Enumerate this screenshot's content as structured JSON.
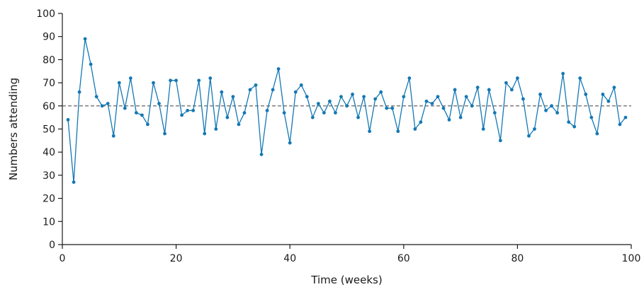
{
  "chart_data": {
    "type": "line",
    "xlabel": "Time (weeks)",
    "ylabel": "Numbers attending",
    "xlim": [
      0,
      100
    ],
    "ylim": [
      0,
      100
    ],
    "xticks": [
      0,
      20,
      40,
      60,
      80,
      100
    ],
    "yticks": [
      0,
      10,
      20,
      30,
      40,
      50,
      60,
      70,
      80,
      90,
      100
    ],
    "grid": false,
    "reference_line": {
      "y": 60,
      "style": "dashed",
      "color": "#555555"
    },
    "series_color": "#1478b4",
    "series": [
      {
        "x": [
          1,
          2,
          3,
          4,
          5,
          6,
          7,
          8,
          9,
          10,
          11,
          12,
          13,
          14,
          15,
          16,
          17,
          18,
          19,
          20,
          21,
          22,
          23,
          24,
          25,
          26,
          27,
          28,
          29,
          30,
          31,
          32,
          33,
          34,
          35,
          36,
          37,
          38,
          39,
          40,
          41,
          42,
          43,
          44,
          45,
          46,
          47,
          48,
          49,
          50,
          51,
          52,
          53,
          54,
          55,
          56,
          57,
          58,
          59,
          60,
          61,
          62,
          63,
          64,
          65,
          66,
          67,
          68,
          69,
          70,
          71,
          72,
          73,
          74,
          75,
          76,
          77,
          78,
          79,
          80,
          81,
          82,
          83,
          84,
          85,
          86,
          87,
          88,
          89,
          90,
          91,
          92,
          93,
          94,
          95,
          96,
          97,
          98,
          99
        ],
        "y": [
          54,
          27,
          66,
          89,
          78,
          64,
          60,
          61,
          47,
          70,
          59,
          72,
          57,
          56,
          52,
          70,
          61,
          48,
          71,
          71,
          56,
          58,
          58,
          71,
          48,
          72,
          50,
          66,
          55,
          64,
          52,
          57,
          67,
          69,
          39,
          58,
          67,
          76,
          57,
          44,
          66,
          69,
          64,
          55,
          61,
          57,
          62,
          57,
          64,
          60,
          65,
          55,
          64,
          49,
          63,
          66,
          59,
          59,
          49,
          64,
          72,
          50,
          53,
          62,
          61,
          64,
          59,
          54,
          67,
          55,
          64,
          60,
          68,
          50,
          67,
          57,
          45,
          70,
          67,
          72,
          63,
          47,
          50,
          65,
          58,
          60,
          57,
          74,
          53,
          51,
          72,
          65,
          55,
          48,
          65,
          62,
          68,
          52,
          55
        ]
      }
    ]
  }
}
